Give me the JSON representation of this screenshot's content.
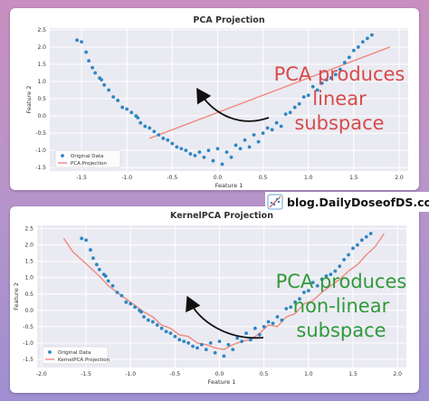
{
  "brand": {
    "text": "blog.DailyDoseofDS.com",
    "icon": "chart-logo-icon"
  },
  "callouts": {
    "top": {
      "lines": [
        "PCA produces",
        "linear",
        "subspace"
      ],
      "color": "#d64b4b"
    },
    "bottom": {
      "lines": [
        "PCA produces",
        "non-linear",
        "subspace"
      ],
      "color": "#2f9a3a"
    }
  },
  "colors": {
    "points": "#2e86c1",
    "projection": "#f08a7e",
    "axes_bg": "#eaeaf2"
  },
  "chart_data": [
    {
      "type": "scatter",
      "title": "PCA Projection",
      "xlabel": "Feature 1",
      "ylabel": "Feature 2",
      "xlim": [
        -1.85,
        2.1
      ],
      "ylim": [
        -1.6,
        2.55
      ],
      "xticks": [
        -1.5,
        -1.0,
        -0.5,
        0.0,
        0.5,
        1.0,
        1.5,
        2.0
      ],
      "xtick_labels": [
        "-1.5",
        "-1.0",
        "-0.5",
        "0.0",
        "0.5",
        "1.0",
        "1.5",
        "2.0"
      ],
      "yticks": [
        -1.5,
        -1.0,
        -0.5,
        0.0,
        0.5,
        1.0,
        1.5,
        2.0,
        2.5
      ],
      "ytick_labels": [
        "-1.5",
        "-1.0",
        "-0.5",
        "0.0",
        "0.5",
        "1.0",
        "1.5",
        "2.0",
        "2.5"
      ],
      "grid": true,
      "legend": "lower-left",
      "series": [
        {
          "name": "Original Data",
          "kind": "points",
          "x": [
            -1.55,
            -1.5,
            -1.45,
            -1.42,
            -1.38,
            -1.35,
            -1.3,
            -1.28,
            -1.25,
            -1.2,
            -1.15,
            -1.1,
            -1.05,
            -1.0,
            -0.95,
            -0.9,
            -0.88,
            -0.85,
            -0.8,
            -0.75,
            -0.7,
            -0.65,
            -0.6,
            -0.55,
            -0.5,
            -0.45,
            -0.4,
            -0.35,
            -0.3,
            -0.25,
            -0.2,
            -0.15,
            -0.1,
            -0.05,
            0.0,
            0.05,
            0.1,
            0.15,
            0.2,
            0.25,
            0.3,
            0.35,
            0.4,
            0.45,
            0.5,
            0.55,
            0.6,
            0.65,
            0.7,
            0.75,
            0.8,
            0.85,
            0.9,
            0.95,
            1.0,
            1.05,
            1.1,
            1.15,
            1.2,
            1.25,
            1.3,
            1.35,
            1.4,
            1.45,
            1.5,
            1.55,
            1.6,
            1.65,
            1.7
          ],
          "y": [
            2.2,
            2.15,
            1.85,
            1.6,
            1.4,
            1.25,
            1.1,
            1.05,
            0.9,
            0.75,
            0.55,
            0.45,
            0.25,
            0.2,
            0.1,
            0.0,
            -0.05,
            -0.2,
            -0.3,
            -0.35,
            -0.45,
            -0.55,
            -0.65,
            -0.7,
            -0.8,
            -0.9,
            -0.95,
            -1.0,
            -1.1,
            -1.15,
            -1.05,
            -1.2,
            -1.0,
            -1.3,
            -0.95,
            -1.4,
            -1.05,
            -1.2,
            -0.85,
            -0.95,
            -0.7,
            -0.9,
            -0.55,
            -0.75,
            -0.5,
            -0.35,
            -0.4,
            -0.2,
            -0.3,
            0.05,
            0.1,
            0.25,
            0.35,
            0.55,
            0.6,
            0.85,
            0.75,
            0.95,
            1.05,
            1.1,
            1.2,
            1.35,
            1.55,
            1.7,
            1.9,
            2.0,
            2.15,
            2.25,
            2.35
          ]
        },
        {
          "name": "PCA Projection",
          "kind": "line",
          "x": [
            -0.75,
            1.9
          ],
          "y": [
            -0.65,
            2.0
          ]
        }
      ]
    },
    {
      "type": "scatter",
      "title": "KernelPCA Projection",
      "xlabel": "Feature 1",
      "ylabel": "Feature 2",
      "xlim": [
        -2.05,
        2.1
      ],
      "ylim": [
        -1.75,
        2.6
      ],
      "xticks": [
        -2.0,
        -1.5,
        -1.0,
        -0.5,
        0.0,
        0.5,
        1.0,
        1.5,
        2.0
      ],
      "xtick_labels": [
        "-2.0",
        "-1.5",
        "-1.0",
        "-0.5",
        "0.0",
        "0.5",
        "1.0",
        "1.5",
        "2.0"
      ],
      "yticks": [
        -1.5,
        -1.0,
        -0.5,
        0.0,
        0.5,
        1.0,
        1.5,
        2.0,
        2.5
      ],
      "ytick_labels": [
        "-1.5",
        "-1.0",
        "-0.5",
        "0.0",
        "0.5",
        "1.0",
        "1.5",
        "2.0",
        "2.5"
      ],
      "grid": true,
      "legend": "lower-left",
      "series": [
        {
          "name": "Original Data",
          "kind": "points",
          "x": [
            -1.55,
            -1.5,
            -1.45,
            -1.42,
            -1.38,
            -1.35,
            -1.3,
            -1.28,
            -1.25,
            -1.2,
            -1.15,
            -1.1,
            -1.05,
            -1.0,
            -0.95,
            -0.9,
            -0.88,
            -0.85,
            -0.8,
            -0.75,
            -0.7,
            -0.65,
            -0.6,
            -0.55,
            -0.5,
            -0.45,
            -0.4,
            -0.35,
            -0.3,
            -0.25,
            -0.2,
            -0.15,
            -0.1,
            -0.05,
            0.0,
            0.05,
            0.1,
            0.15,
            0.2,
            0.25,
            0.3,
            0.35,
            0.4,
            0.45,
            0.5,
            0.55,
            0.6,
            0.65,
            0.7,
            0.75,
            0.8,
            0.85,
            0.9,
            0.95,
            1.0,
            1.05,
            1.1,
            1.15,
            1.2,
            1.25,
            1.3,
            1.35,
            1.4,
            1.45,
            1.5,
            1.55,
            1.6,
            1.65,
            1.7
          ],
          "y": [
            2.2,
            2.15,
            1.85,
            1.6,
            1.4,
            1.25,
            1.1,
            1.05,
            0.9,
            0.75,
            0.55,
            0.45,
            0.25,
            0.2,
            0.1,
            0.0,
            -0.05,
            -0.2,
            -0.3,
            -0.35,
            -0.45,
            -0.55,
            -0.65,
            -0.7,
            -0.8,
            -0.9,
            -0.95,
            -1.0,
            -1.1,
            -1.15,
            -1.05,
            -1.2,
            -1.0,
            -1.3,
            -0.95,
            -1.4,
            -1.05,
            -1.2,
            -0.85,
            -0.95,
            -0.7,
            -0.9,
            -0.55,
            -0.75,
            -0.5,
            -0.35,
            -0.4,
            -0.2,
            -0.3,
            0.05,
            0.1,
            0.25,
            0.35,
            0.55,
            0.6,
            0.85,
            0.75,
            0.95,
            1.05,
            1.1,
            1.2,
            1.35,
            1.55,
            1.7,
            1.9,
            2.0,
            2.15,
            2.25,
            2.35
          ]
        },
        {
          "name": "KernelPCA Projection",
          "kind": "line",
          "x": [
            -1.75,
            -1.65,
            -1.55,
            -1.45,
            -1.35,
            -1.25,
            -1.15,
            -1.05,
            -0.95,
            -0.85,
            -0.75,
            -0.65,
            -0.55,
            -0.45,
            -0.35,
            -0.25,
            -0.15,
            -0.05,
            0.05,
            0.15,
            0.25,
            0.35,
            0.45,
            0.55,
            0.65,
            0.75,
            0.85,
            0.95,
            1.05,
            1.15,
            1.25,
            1.35,
            1.45,
            1.55,
            1.65,
            1.75,
            1.85
          ],
          "y": [
            2.2,
            1.8,
            1.55,
            1.3,
            1.05,
            0.75,
            0.55,
            0.35,
            0.15,
            -0.05,
            -0.2,
            -0.45,
            -0.55,
            -0.75,
            -0.8,
            -1.0,
            -1.05,
            -1.15,
            -1.2,
            -1.05,
            -0.95,
            -0.9,
            -0.7,
            -0.45,
            -0.5,
            -0.2,
            -0.1,
            0.2,
            0.3,
            0.55,
            0.75,
            0.95,
            1.2,
            1.4,
            1.7,
            1.95,
            2.35
          ]
        }
      ]
    }
  ]
}
